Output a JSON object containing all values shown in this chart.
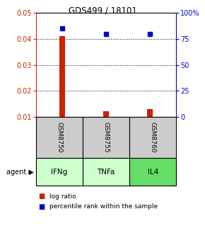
{
  "title": "GDS499 / 18101",
  "samples": [
    "GSM8750",
    "GSM8755",
    "GSM8760"
  ],
  "agents": [
    "IFNg",
    "TNFa",
    "IL4"
  ],
  "log_ratio": [
    0.041,
    0.012,
    0.013
  ],
  "percentile_rank": [
    85,
    80,
    80
  ],
  "bar_color": "#cc2200",
  "marker_color": "#0000cc",
  "ylim_left": [
    0.01,
    0.05
  ],
  "ylim_right": [
    0,
    100
  ],
  "yticks_left": [
    0.01,
    0.02,
    0.03,
    0.04,
    0.05
  ],
  "yticks_right": [
    0,
    25,
    50,
    75,
    100
  ],
  "ytick_labels_left": [
    "0.01",
    "0.02",
    "0.03",
    "0.04",
    "0.05"
  ],
  "ytick_labels_right": [
    "0",
    "25",
    "50",
    "75",
    "100%"
  ],
  "grid_color": "#000000",
  "sample_box_color": "#cccccc",
  "agent_colors": [
    "#ccffcc",
    "#ccffcc",
    "#66dd66"
  ],
  "legend_log_ratio": "log ratio",
  "legend_percentile": "percentile rank within the sample",
  "agent_label": "agent",
  "background_color": "#ffffff",
  "bar_width": 0.12
}
